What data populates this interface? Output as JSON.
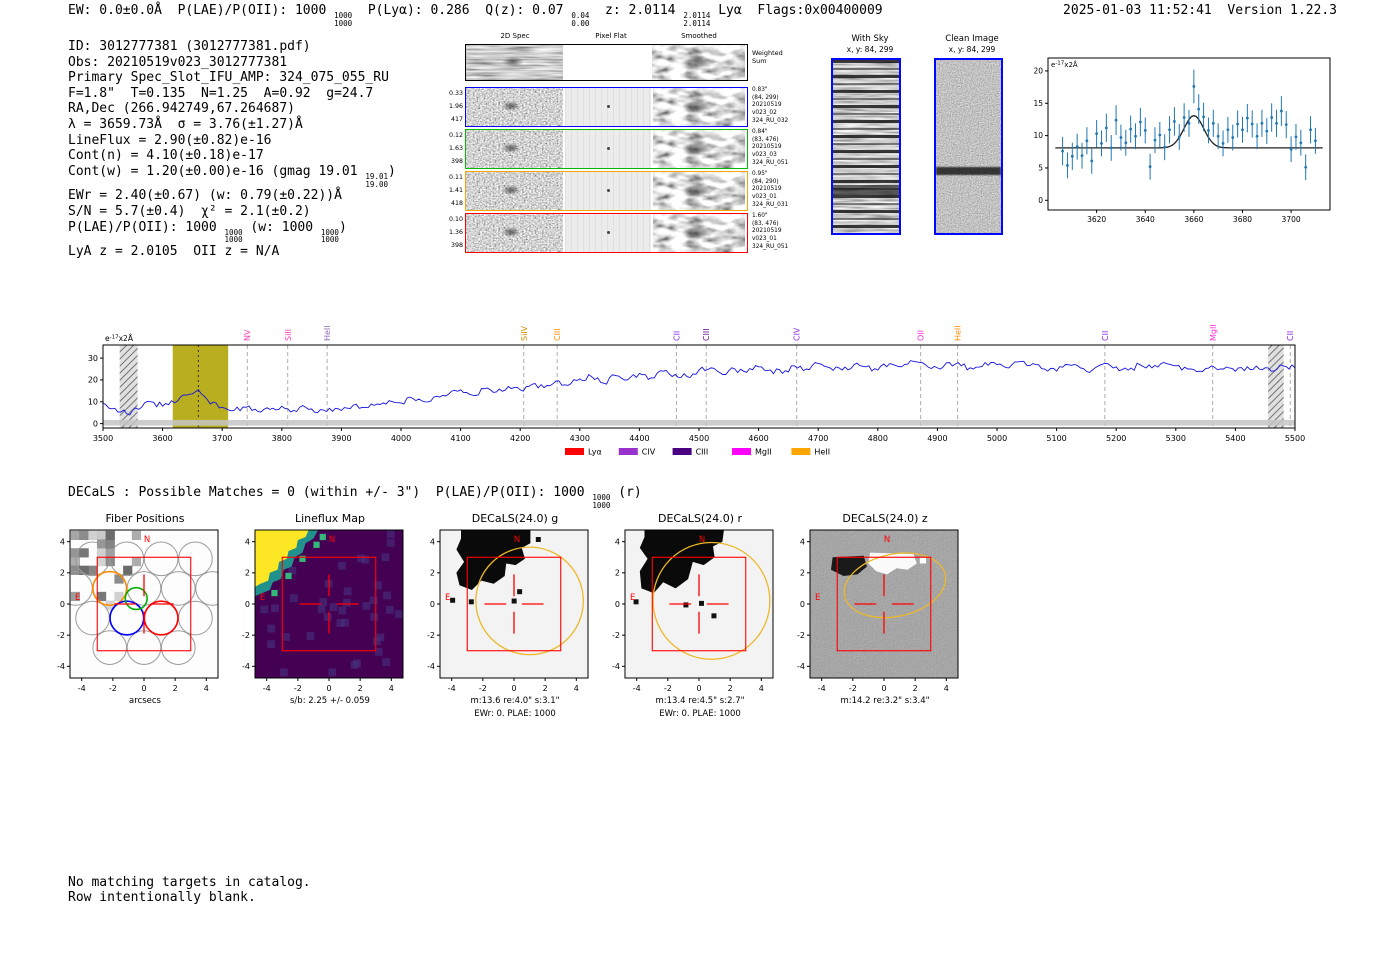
{
  "meta": {
    "timestamp": "2025-01-03 11:52:41",
    "version_label": "Version 1.22.3"
  },
  "header_line": [
    {
      "text": "EW: 0.0±0.0Å  P(LAE)/P(OII): 1000 "
    },
    {
      "stack": [
        "1000",
        "1000"
      ]
    },
    {
      "text": "  P(Lyα): 0.286  Q(z): 0.07 "
    },
    {
      "stack": [
        "0.04",
        "0.00"
      ]
    },
    {
      "text": "  z: 2.0114 "
    },
    {
      "stack": [
        "2.0114",
        "2.0114"
      ]
    },
    {
      "text": " Lyα  Flags:0x00400009"
    }
  ],
  "info_lines": [
    [
      {
        "text": "ID: 3012777381 (3012777381.pdf)"
      }
    ],
    [
      {
        "text": "Obs: 20210519v023_3012777381"
      }
    ],
    [
      {
        "text": "Primary Spec_Slot_IFU_AMP: 324_075_055_RU"
      }
    ],
    [
      {
        "text": "F=1.8\"  T=0.135  N=1.25  A=0.92  g=24.7"
      }
    ],
    [
      {
        "text": "RA,Dec (266.942749,67.264687)"
      }
    ],
    [
      {
        "text": "λ = 3659.73Å  σ = 3.76(±1.27)Å"
      }
    ],
    [
      {
        "text": "LineFlux = 2.90(±0.82)e-16"
      }
    ],
    [
      {
        "text": "Cont(n) = 4.10(±0.18)e-17"
      }
    ],
    [
      {
        "text": "Cont(w) = 1.20(±0.00)e-16 (gmag 19.01 "
      },
      {
        "stack": [
          "19.01",
          "19.00"
        ]
      },
      {
        "text": ")"
      }
    ],
    [
      {
        "text": "EWr = 2.40(±0.67) (w: 0.79(±0.22))Å"
      }
    ],
    [
      {
        "text": "S/N = 5.7(±0.4)  χ² = 2.1(±0.2)"
      }
    ],
    [
      {
        "text": "P(LAE)/P(OII): 1000 "
      },
      {
        "stack": [
          "1000",
          "1000"
        ]
      },
      {
        "text": " (w: 1000 "
      },
      {
        "stack": [
          "1000",
          "1000"
        ]
      },
      {
        "text": ")"
      }
    ],
    [
      {
        "text": "LyA z = 2.0105  OII z = N/A"
      }
    ]
  ],
  "spec2d": {
    "col_headers": [
      "2D Spec",
      "Pixel Flat",
      "Smoothed"
    ],
    "weighted_label": [
      "Weighted",
      "Sum"
    ],
    "rows": [
      {
        "color": "#0000ff",
        "left": [
          "0.33",
          "1.96",
          "417"
        ],
        "right": [
          "0.83\"",
          "(84, 299)",
          "20210519",
          "v023_02",
          "324_RU_032"
        ]
      },
      {
        "color": "#00bb00",
        "left": [
          "0.12",
          "1.63",
          "398"
        ],
        "right": [
          "0.84\"",
          "(83, 476)",
          "20210519",
          "v023_03",
          "324_RU_051"
        ]
      },
      {
        "color": "#ffa500",
        "left": [
          "0.11",
          "1.41",
          "418"
        ],
        "right": [
          "0.95\"",
          "(84, 290)",
          "20210519",
          "v023_01",
          "324_RU_031"
        ]
      },
      {
        "color": "#ff0000",
        "left": [
          "0.10",
          "1.36",
          "398"
        ],
        "right": [
          "1.60\"",
          "(83, 476)",
          "20210519",
          "v023_01",
          "324_RU_051"
        ]
      }
    ]
  },
  "cutout_with_sky": {
    "title": "With Sky",
    "subtitle": "x, y: 84, 299"
  },
  "cutout_clean": {
    "title": "Clean Image",
    "subtitle": "x, y: 84, 299"
  },
  "decals_line": [
    {
      "text": "DECaLS : Possible Matches = 0 (within +/- 3\")  P(LAE)/P(OII): 1000 "
    },
    {
      "stack": [
        "1000",
        "1000"
      ]
    },
    {
      "text": " (r)"
    }
  ],
  "footer_lines": [
    "No matching targets in catalog.",
    "Row intentionally blank."
  ],
  "panel_common": {
    "ticks": [
      -4,
      -2,
      0,
      2,
      4
    ],
    "north_label": "N",
    "east_label": "E",
    "aperture_color": "#ff0000",
    "ellipse_color": "#edb829"
  },
  "panels": [
    {
      "key": "fiber",
      "title": "Fiber Positions",
      "captions": [
        "arcsecs"
      ]
    },
    {
      "key": "lineflux",
      "title": "Lineflux Map",
      "captions": [
        "s/b: 2.25 +/- 0.059"
      ]
    },
    {
      "key": "gband",
      "title": "DECaLS(24.0) g",
      "captions": [
        "m:13.6 re:4.0\" s:3.1\"",
        "EWr: 0. PLAE: 1000"
      ]
    },
    {
      "key": "rband",
      "title": "DECaLS(24.0) r",
      "captions": [
        "m:13.4 re:4.5\" s:2.7\"",
        "EWr: 0. PLAE: 1000"
      ]
    },
    {
      "key": "zband",
      "title": "DECaLS(24.0) z",
      "captions": [
        "m:14.2 re:3.2\" s:3.4\""
      ]
    }
  ],
  "chart_data": [
    {
      "type": "scatter",
      "title": "emission line fit inset",
      "ylabel": "e-17x2Å",
      "xlim": [
        3600,
        3716
      ],
      "ylim": [
        -1.5,
        22
      ],
      "x_ticks": [
        3620,
        3640,
        3660,
        3680,
        3700
      ],
      "y_ticks": [
        0,
        5,
        10,
        15,
        20
      ],
      "point_color": "#1f77b4",
      "fit": {
        "continuum": 8.1,
        "amplitude": 5.0,
        "center": 3660,
        "sigma": 4.0
      },
      "fit_range": [
        3603,
        3713
      ],
      "points": [
        [
          3606,
          7.6,
          2.2
        ],
        [
          3608,
          5.4,
          2.0
        ],
        [
          3610,
          6.8,
          2.1
        ],
        [
          3612,
          8.3,
          2.0
        ],
        [
          3614,
          6.9,
          2.0
        ],
        [
          3616,
          9.2,
          2.1
        ],
        [
          3618,
          6.1,
          2.0
        ],
        [
          3620,
          10.3,
          2.1
        ],
        [
          3622,
          8.8,
          2.0
        ],
        [
          3624,
          11.2,
          2.2
        ],
        [
          3626,
          8.1,
          2.0
        ],
        [
          3628,
          12.4,
          2.3
        ],
        [
          3630,
          9.7,
          2.0
        ],
        [
          3632,
          8.9,
          2.0
        ],
        [
          3634,
          11.0,
          2.1
        ],
        [
          3636,
          9.9,
          2.0
        ],
        [
          3638,
          12.1,
          2.2
        ],
        [
          3640,
          10.8,
          2.0
        ],
        [
          3642,
          5.2,
          2.0
        ],
        [
          3644,
          9.3,
          2.0
        ],
        [
          3646,
          10.1,
          2.0
        ],
        [
          3648,
          8.2,
          2.0
        ],
        [
          3650,
          10.9,
          2.1
        ],
        [
          3652,
          12.2,
          2.2
        ],
        [
          3654,
          9.8,
          2.0
        ],
        [
          3656,
          12.8,
          2.2
        ],
        [
          3658,
          11.9,
          2.1
        ],
        [
          3660,
          17.6,
          2.6
        ],
        [
          3662,
          14.1,
          2.3
        ],
        [
          3664,
          12.9,
          2.2
        ],
        [
          3666,
          10.8,
          2.0
        ],
        [
          3668,
          11.9,
          2.1
        ],
        [
          3670,
          9.9,
          2.0
        ],
        [
          3672,
          8.8,
          2.0
        ],
        [
          3674,
          10.9,
          2.0
        ],
        [
          3676,
          9.7,
          2.0
        ],
        [
          3678,
          11.8,
          2.1
        ],
        [
          3680,
          10.9,
          2.0
        ],
        [
          3682,
          12.7,
          2.2
        ],
        [
          3684,
          11.8,
          2.1
        ],
        [
          3686,
          9.9,
          2.0
        ],
        [
          3688,
          11.9,
          2.1
        ],
        [
          3690,
          10.7,
          2.0
        ],
        [
          3692,
          12.8,
          2.2
        ],
        [
          3694,
          11.9,
          2.1
        ],
        [
          3696,
          13.8,
          2.3
        ],
        [
          3698,
          11.7,
          2.1
        ],
        [
          3700,
          7.9,
          2.0
        ],
        [
          3702,
          9.8,
          2.0
        ],
        [
          3704,
          8.9,
          2.0
        ],
        [
          3706,
          5.1,
          2.0
        ],
        [
          3708,
          10.9,
          2.1
        ],
        [
          3710,
          9.2,
          2.0
        ]
      ]
    },
    {
      "type": "line",
      "title": "full spectrum",
      "ylabel": "e-17x2Å",
      "xlim": [
        3500,
        5500
      ],
      "ylim": [
        -2,
        36
      ],
      "x_ticks": [
        3500,
        3600,
        3700,
        3800,
        3900,
        4000,
        4100,
        4200,
        4300,
        4400,
        4500,
        4600,
        4700,
        4800,
        4900,
        5000,
        5100,
        5200,
        5300,
        5400,
        5500
      ],
      "y_ticks": [
        0,
        10,
        20,
        30
      ],
      "line_color": "#1414e0",
      "x_start": 3500,
      "x_step": 20,
      "values": [
        9.5,
        7,
        4.5,
        6.5,
        10,
        8,
        9.5,
        13,
        15.5,
        9,
        7.5,
        6,
        7.5,
        5.5,
        6.5,
        8,
        6,
        7.5,
        5,
        7,
        6,
        8.5,
        7.5,
        9,
        10.5,
        9.5,
        11.5,
        10,
        12.5,
        13.5,
        15.5,
        13,
        16,
        14.5,
        17,
        15.5,
        18,
        16.5,
        19.5,
        17.5,
        20.5,
        21.5,
        18.5,
        22,
        20,
        23,
        21,
        24,
        22.5,
        21.5,
        24.5,
        25.5,
        22.5,
        25,
        23.5,
        26,
        24.5,
        23,
        26.5,
        25,
        27.5,
        25.5,
        24.5,
        27,
        26,
        24.5,
        27.5,
        26,
        28.5,
        27,
        25.5,
        28,
        26.5,
        25,
        28,
        27,
        25.5,
        28.5,
        27.5,
        25,
        24,
        27,
        25.5,
        24.5,
        27.5,
        26,
        24.5,
        27,
        25.5,
        28,
        26.5,
        25,
        24,
        26.5,
        25,
        24,
        26,
        25,
        24,
        26.5,
        25.5
      ],
      "emission_band": [
        3617,
        3710
      ],
      "emission_band_color": "#b9ae20",
      "line_center": 3660,
      "masked_bands": [
        [
          3528,
          3558
        ],
        [
          5455,
          5481
        ]
      ],
      "markers": [
        {
          "label": "NV",
          "wave": 3742,
          "color": "#ff3db5"
        },
        {
          "label": "SiII",
          "wave": 3810,
          "color": "#ff3db5"
        },
        {
          "label": "HeII",
          "wave": 3876,
          "color": "#9467bd"
        },
        {
          "label": "SiIV",
          "wave": 4206,
          "color": "#d98a00"
        },
        {
          "label": "CIII",
          "wave": 4262,
          "color": "#ff8c00"
        },
        {
          "label": "CII",
          "wave": 4462,
          "color": "#8a2be2"
        },
        {
          "label": "CIII",
          "wave": 4512,
          "color": "#5b0a91"
        },
        {
          "label": "CIV",
          "wave": 4664,
          "color": "#8a2be2"
        },
        {
          "label": "OII",
          "wave": 4872,
          "color": "#ff2fd2"
        },
        {
          "label": "HeII",
          "wave": 4934,
          "color": "#ff8c00"
        },
        {
          "label": "CII",
          "wave": 5181,
          "color": "#8a2be2"
        },
        {
          "label": "MgII",
          "wave": 5362,
          "color": "#ff2fd2"
        },
        {
          "label": "CII",
          "wave": 5492,
          "color": "#8a2be2"
        }
      ],
      "legend": [
        {
          "label": "Lyα",
          "color": "#ff0000"
        },
        {
          "label": "CIV",
          "color": "#9932cc"
        },
        {
          "label": "CIII",
          "color": "#4b0082"
        },
        {
          "label": "MgII",
          "color": "#ff00ff"
        },
        {
          "label": "HeII",
          "color": "#ffa500"
        }
      ]
    }
  ]
}
